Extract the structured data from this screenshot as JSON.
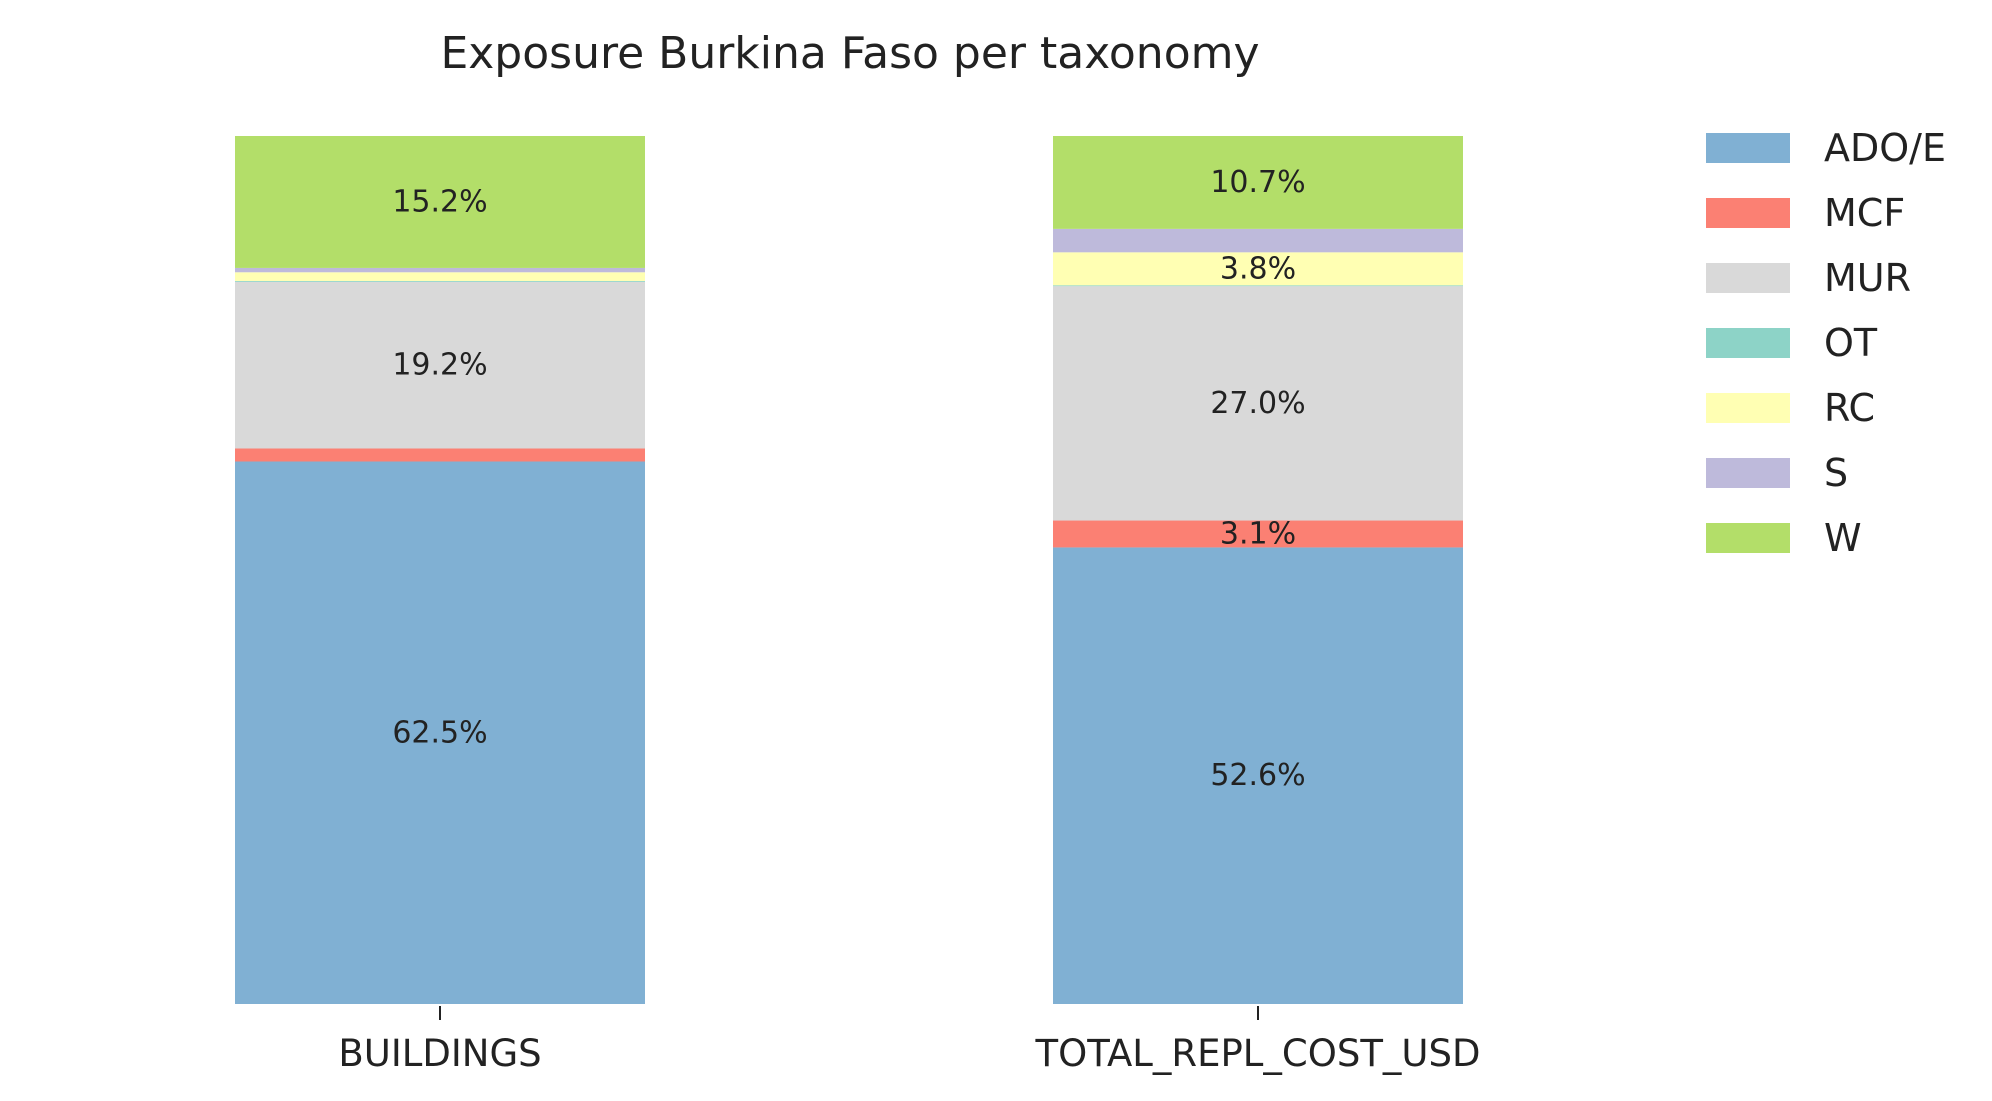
{
  "chart_data": {
    "type": "bar",
    "stacked": true,
    "normalized": true,
    "title": "Exposure Burkina Faso per taxonomy",
    "categories": [
      "BUILDINGS",
      "TOTAL_REPL_COST_USD"
    ],
    "ylim": [
      0,
      100
    ],
    "grid": false,
    "legend_position": "top-right",
    "series": [
      {
        "name": "ADO/E",
        "color": "#80b0d3",
        "values": [
          62.5,
          52.6
        ],
        "labels": [
          "62.5%",
          "52.6%"
        ]
      },
      {
        "name": "MCF",
        "color": "#fb8073",
        "values": [
          1.5,
          3.1
        ],
        "labels": [
          "",
          "3.1%"
        ]
      },
      {
        "name": "MUR",
        "color": "#d9d9d9",
        "values": [
          19.2,
          27.0
        ],
        "labels": [
          "19.2%",
          "27.0%"
        ]
      },
      {
        "name": "OT",
        "color": "#8dd3c7",
        "values": [
          0.1,
          0.1
        ],
        "labels": [
          "",
          ""
        ]
      },
      {
        "name": "RC",
        "color": "#ffffb3",
        "values": [
          1.0,
          3.8
        ],
        "labels": [
          "",
          "3.8%"
        ]
      },
      {
        "name": "S",
        "color": "#bebadb",
        "values": [
          0.5,
          2.7
        ],
        "labels": [
          "",
          ""
        ]
      },
      {
        "name": "W",
        "color": "#b3de69",
        "values": [
          15.2,
          10.7
        ],
        "labels": [
          "15.2%",
          "10.7%"
        ]
      }
    ]
  }
}
